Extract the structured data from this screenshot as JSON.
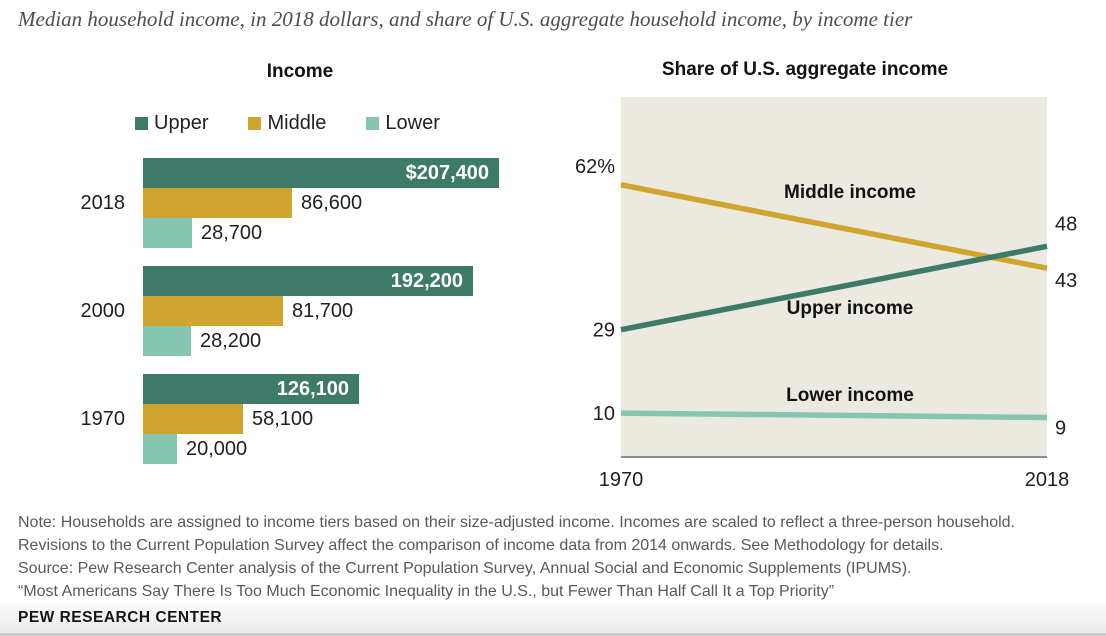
{
  "title": "Median household income, in 2018 dollars, and share of U.S. aggregate household income, by income tier",
  "footer": "PEW RESEARCH CENTER",
  "colors": {
    "upper": "#3E7A68",
    "middle": "#D0A52F",
    "lower": "#85C6B1",
    "plot_bg": "#ECE9E1",
    "axis": "#8C8C8C",
    "label_dark": "#1F1F1F",
    "series_label": "#121212",
    "bar_label_light": "#FFFFFF",
    "note_text": "#58595B"
  },
  "notes": [
    "Note: Households are assigned to income tiers based on their size-adjusted income. Incomes are scaled to reflect a three-person household.",
    "Revisions to the Current Population Survey affect the comparison of income data from 2014 onwards. See Methodology for details.",
    "Source: Pew Research Center analysis of the Current Population Survey, Annual Social and Economic Supplements (IPUMS).",
    "“Most Americans Say There Is Too Much Economic Inequality in the U.S., but Fewer Than Half Call It a Top Priority”"
  ],
  "chart_data": [
    {
      "type": "bar",
      "title": "Income",
      "orientation": "horizontal",
      "categories": [
        "2018",
        "2000",
        "1970"
      ],
      "xmax": 207400,
      "legend": [
        {
          "label": "Upper",
          "color_key": "upper"
        },
        {
          "label": "Middle",
          "color_key": "middle"
        },
        {
          "label": "Lower",
          "color_key": "lower"
        }
      ],
      "groups": [
        {
          "category": "2018",
          "bars": [
            {
              "tier": "upper",
              "value": 207400,
              "label": "$207,400",
              "label_inside": true
            },
            {
              "tier": "middle",
              "value": 86600,
              "label": "86,600",
              "label_inside": false
            },
            {
              "tier": "lower",
              "value": 28700,
              "label": "28,700",
              "label_inside": false
            }
          ]
        },
        {
          "category": "2000",
          "bars": [
            {
              "tier": "upper",
              "value": 192200,
              "label": "192,200",
              "label_inside": true
            },
            {
              "tier": "middle",
              "value": 81700,
              "label": "81,700",
              "label_inside": false
            },
            {
              "tier": "lower",
              "value": 28200,
              "label": "28,200",
              "label_inside": false
            }
          ]
        },
        {
          "category": "1970",
          "bars": [
            {
              "tier": "upper",
              "value": 126100,
              "label": "126,100",
              "label_inside": true
            },
            {
              "tier": "middle",
              "value": 58100,
              "label": "58,100",
              "label_inside": false
            },
            {
              "tier": "lower",
              "value": 20000,
              "label": "20,000",
              "label_inside": false
            }
          ]
        }
      ]
    },
    {
      "type": "line",
      "title": "Share of U.S. aggregate income",
      "x": [
        1970,
        2018
      ],
      "x_tick_labels": [
        "1970",
        "2018"
      ],
      "ylim": [
        0,
        82
      ],
      "grid": false,
      "legend_position": "inline-labels",
      "series": [
        {
          "name": "Middle income",
          "tier": "middle",
          "values": [
            62,
            43
          ],
          "start_label": "62%",
          "end_label": "43"
        },
        {
          "name": "Upper income",
          "tier": "upper",
          "values": [
            29,
            48
          ],
          "start_label": "29",
          "end_label": "48"
        },
        {
          "name": "Lower income",
          "tier": "lower",
          "values": [
            10,
            9
          ],
          "start_label": "10",
          "end_label": "9"
        }
      ]
    }
  ]
}
